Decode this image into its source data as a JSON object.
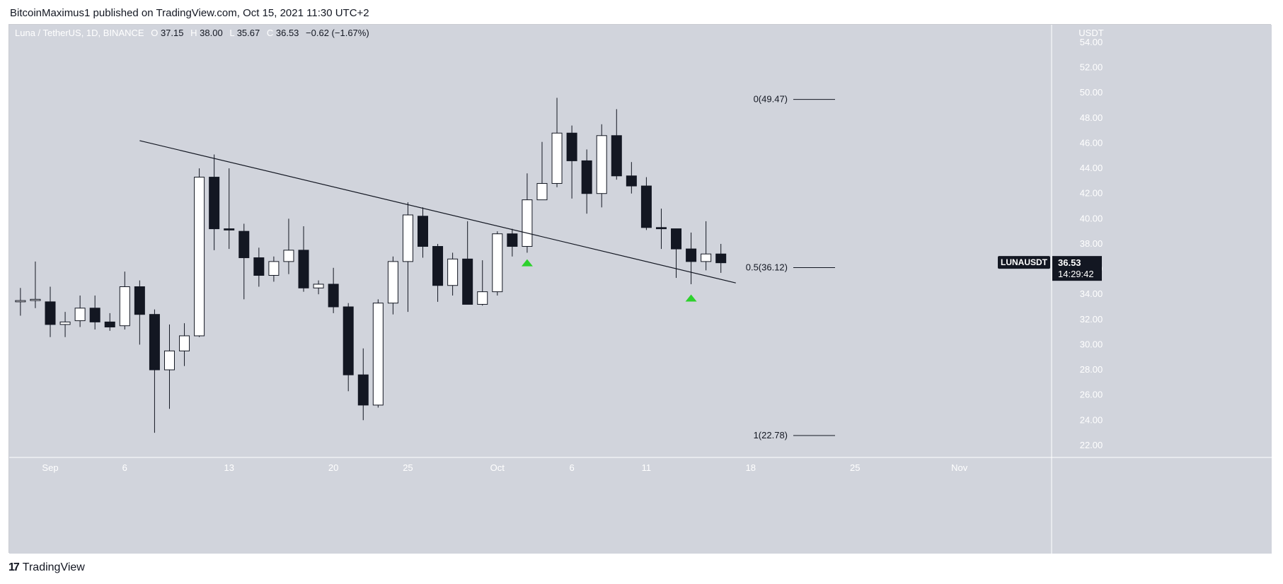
{
  "header": {
    "published_text": "BitcoinMaximus1 published on TradingView.com, Oct 15, 2021 11:30 UTC+2"
  },
  "footer": {
    "brand": "TradingView"
  },
  "legend": {
    "symbol": "Luna / TetherUS, 1D, BINANCE",
    "o_key": "O",
    "o_val": "37.15",
    "h_key": "H",
    "h_val": "38.00",
    "l_key": "L",
    "l_val": "35.67",
    "c_key": "C",
    "c_val": "36.53",
    "change": "−0.62 (−1.67%)"
  },
  "price_badge": {
    "ticker": "LUNAUSDT",
    "price": "36.53",
    "countdown": "14:29:42"
  },
  "colors": {
    "plot_bg": "#d1d4dc",
    "bear": "#131722",
    "bull": "#ffffff",
    "arrow": "#2dd12d"
  },
  "chart_data": {
    "type": "candlestick",
    "y_unit": "USDT",
    "ylim": [
      21.5,
      55
    ],
    "y_ticks": [
      "54.00",
      "52.00",
      "50.00",
      "48.00",
      "46.00",
      "44.00",
      "42.00",
      "40.00",
      "38.00",
      "36.00",
      "34.00",
      "32.00",
      "30.00",
      "28.00",
      "26.00",
      "24.00",
      "22.00"
    ],
    "x_ticks": [
      {
        "label": "Sep",
        "day": 0
      },
      {
        "label": "6",
        "day": 5
      },
      {
        "label": "13",
        "day": 12
      },
      {
        "label": "20",
        "day": 19
      },
      {
        "label": "25",
        "day": 24
      },
      {
        "label": "Oct",
        "day": 30
      },
      {
        "label": "6",
        "day": 35
      },
      {
        "label": "11",
        "day": 40
      },
      {
        "label": "18",
        "day": 47
      },
      {
        "label": "25",
        "day": 54
      },
      {
        "label": "Nov",
        "day": 61
      }
    ],
    "candles": [
      {
        "day": -3,
        "o": 35.1,
        "h": 37.2,
        "l": 33.4,
        "c": 33.5
      },
      {
        "day": -2,
        "o": 33.4,
        "h": 34.5,
        "l": 32.3,
        "c": 33.5
      },
      {
        "day": -1,
        "o": 33.5,
        "h": 36.6,
        "l": 32.9,
        "c": 33.6
      },
      {
        "day": 0,
        "o": 33.4,
        "h": 34.6,
        "l": 30.6,
        "c": 31.6
      },
      {
        "day": 1,
        "o": 31.6,
        "h": 32.6,
        "l": 30.6,
        "c": 31.8
      },
      {
        "day": 2,
        "o": 31.9,
        "h": 33.9,
        "l": 31.4,
        "c": 32.9
      },
      {
        "day": 3,
        "o": 32.9,
        "h": 33.9,
        "l": 31.2,
        "c": 31.8
      },
      {
        "day": 4,
        "o": 31.8,
        "h": 32.5,
        "l": 31.1,
        "c": 31.4
      },
      {
        "day": 5,
        "o": 31.5,
        "h": 35.8,
        "l": 31.2,
        "c": 34.6
      },
      {
        "day": 6,
        "o": 34.6,
        "h": 35.1,
        "l": 30.0,
        "c": 32.4
      },
      {
        "day": 7,
        "o": 32.4,
        "h": 32.8,
        "l": 23.0,
        "c": 28.0
      },
      {
        "day": 8,
        "o": 28.0,
        "h": 31.6,
        "l": 24.9,
        "c": 29.5
      },
      {
        "day": 9,
        "o": 29.5,
        "h": 31.7,
        "l": 28.3,
        "c": 30.7
      },
      {
        "day": 10,
        "o": 30.7,
        "h": 44.0,
        "l": 30.6,
        "c": 43.3
      },
      {
        "day": 11,
        "o": 43.3,
        "h": 45.1,
        "l": 37.5,
        "c": 39.2
      },
      {
        "day": 12,
        "o": 39.2,
        "h": 44.0,
        "l": 37.6,
        "c": 39.1
      },
      {
        "day": 13,
        "o": 39.0,
        "h": 39.6,
        "l": 33.6,
        "c": 36.9
      },
      {
        "day": 14,
        "o": 36.9,
        "h": 37.7,
        "l": 34.6,
        "c": 35.5
      },
      {
        "day": 15,
        "o": 35.5,
        "h": 37.0,
        "l": 35.0,
        "c": 36.6
      },
      {
        "day": 16,
        "o": 36.6,
        "h": 40.0,
        "l": 35.6,
        "c": 37.5
      },
      {
        "day": 17,
        "o": 37.5,
        "h": 39.4,
        "l": 34.2,
        "c": 34.5
      },
      {
        "day": 18,
        "o": 34.5,
        "h": 35.1,
        "l": 34.0,
        "c": 34.8
      },
      {
        "day": 19,
        "o": 34.8,
        "h": 36.1,
        "l": 32.5,
        "c": 33.0
      },
      {
        "day": 20,
        "o": 33.0,
        "h": 33.3,
        "l": 26.3,
        "c": 27.6
      },
      {
        "day": 21,
        "o": 27.6,
        "h": 29.7,
        "l": 24.0,
        "c": 25.2
      },
      {
        "day": 22,
        "o": 25.2,
        "h": 33.6,
        "l": 25.0,
        "c": 33.3
      },
      {
        "day": 23,
        "o": 33.3,
        "h": 37.0,
        "l": 32.4,
        "c": 36.6
      },
      {
        "day": 24,
        "o": 36.6,
        "h": 41.3,
        "l": 32.6,
        "c": 40.3
      },
      {
        "day": 25,
        "o": 40.2,
        "h": 40.9,
        "l": 36.9,
        "c": 37.8
      },
      {
        "day": 26,
        "o": 37.8,
        "h": 38.0,
        "l": 33.4,
        "c": 34.7
      },
      {
        "day": 27,
        "o": 34.7,
        "h": 37.3,
        "l": 33.9,
        "c": 36.8
      },
      {
        "day": 28,
        "o": 36.8,
        "h": 39.8,
        "l": 33.2,
        "c": 33.2
      },
      {
        "day": 29,
        "o": 33.2,
        "h": 36.7,
        "l": 33.1,
        "c": 34.2
      },
      {
        "day": 30,
        "o": 34.2,
        "h": 39.0,
        "l": 33.9,
        "c": 38.8
      },
      {
        "day": 31,
        "o": 38.8,
        "h": 39.2,
        "l": 37.0,
        "c": 37.8
      },
      {
        "day": 32,
        "o": 37.8,
        "h": 43.6,
        "l": 37.3,
        "c": 41.5
      },
      {
        "day": 33,
        "o": 41.5,
        "h": 46.1,
        "l": 41.5,
        "c": 42.8
      },
      {
        "day": 34,
        "o": 42.8,
        "h": 49.6,
        "l": 42.5,
        "c": 46.8
      },
      {
        "day": 35,
        "o": 46.8,
        "h": 47.4,
        "l": 41.6,
        "c": 44.6
      },
      {
        "day": 36,
        "o": 44.6,
        "h": 45.5,
        "l": 40.4,
        "c": 42.0
      },
      {
        "day": 37,
        "o": 42.0,
        "h": 47.5,
        "l": 40.9,
        "c": 46.6
      },
      {
        "day": 38,
        "o": 46.6,
        "h": 48.7,
        "l": 43.1,
        "c": 43.4
      },
      {
        "day": 39,
        "o": 43.4,
        "h": 44.5,
        "l": 42.0,
        "c": 42.6
      },
      {
        "day": 40,
        "o": 42.6,
        "h": 43.3,
        "l": 39.1,
        "c": 39.3
      },
      {
        "day": 41,
        "o": 39.3,
        "h": 40.8,
        "l": 37.6,
        "c": 39.2
      },
      {
        "day": 42,
        "o": 39.2,
        "h": 39.2,
        "l": 35.3,
        "c": 37.6
      },
      {
        "day": 43,
        "o": 37.6,
        "h": 38.9,
        "l": 34.8,
        "c": 36.6
      },
      {
        "day": 44,
        "o": 36.6,
        "h": 39.8,
        "l": 35.9,
        "c": 37.2
      },
      {
        "day": 45,
        "o": 37.2,
        "h": 38.0,
        "l": 35.7,
        "c": 36.5
      }
    ],
    "trendline": {
      "start": {
        "day": 6,
        "price": 46.2
      },
      "end": {
        "day": 46,
        "price": 34.9
      }
    },
    "fib_levels": [
      {
        "label": "0(49.47)",
        "price": 49.47
      },
      {
        "label": "0.5(36.12)",
        "price": 36.12
      },
      {
        "label": "1(22.78)",
        "price": 22.78
      }
    ],
    "markers": [
      {
        "type": "up-arrow",
        "day": 32,
        "price": 36.5
      },
      {
        "type": "up-arrow",
        "day": 43,
        "price": 33.7
      }
    ],
    "current_price": 36.53
  }
}
